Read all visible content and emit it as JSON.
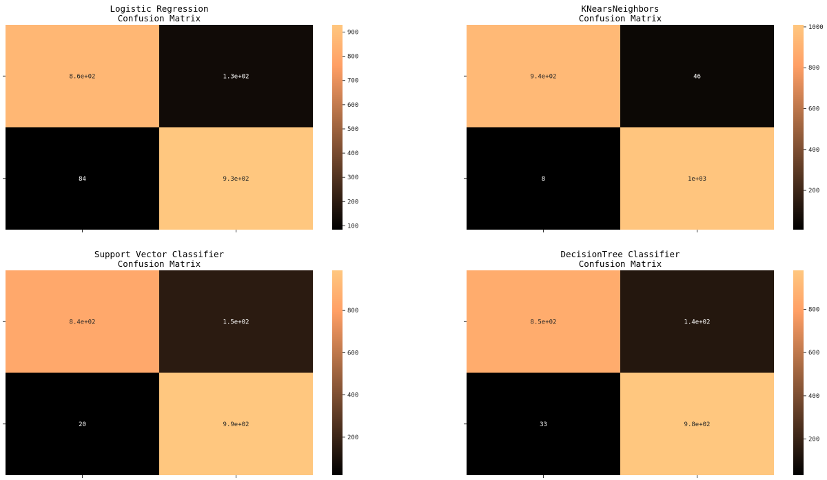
{
  "chart_data": [
    {
      "type": "heatmap",
      "title": "Logistic Regression\nConfusion Matrix",
      "matrix": [
        [
          860,
          130
        ],
        [
          84,
          930
        ]
      ],
      "annotations": [
        [
          "8.6e+02",
          "1.3e+02"
        ],
        [
          "84",
          "9.3e+02"
        ]
      ],
      "colormap": "copper",
      "colorbar": {
        "range": [
          84,
          930
        ],
        "ticks": [
          100,
          200,
          300,
          400,
          500,
          600,
          700,
          800,
          900
        ]
      },
      "xticklabels": [
        "",
        ""
      ],
      "yticklabels": [
        "",
        ""
      ]
    },
    {
      "type": "heatmap",
      "title": "KNearsNeighbors\nConfusion Matrix",
      "matrix": [
        [
          940,
          46
        ],
        [
          8,
          1000
        ]
      ],
      "annotations": [
        [
          "9.4e+02",
          "46"
        ],
        [
          "8",
          "1e+03"
        ]
      ],
      "colormap": "copper",
      "colorbar": {
        "range": [
          8,
          1010
        ],
        "ticks": [
          200,
          400,
          600,
          800,
          1000
        ]
      },
      "xticklabels": [
        "",
        ""
      ],
      "yticklabels": [
        "",
        ""
      ]
    },
    {
      "type": "heatmap",
      "title": "Support Vector Classifier\nConfusion Matrix",
      "matrix": [
        [
          840,
          150
        ],
        [
          20,
          990
        ]
      ],
      "annotations": [
        [
          "8.4e+02",
          "1.5e+02"
        ],
        [
          "20",
          "9.9e+02"
        ]
      ],
      "colormap": "copper",
      "colorbar": {
        "range": [
          20,
          990
        ],
        "ticks": [
          200,
          400,
          600,
          800
        ]
      },
      "xticklabels": [
        "",
        ""
      ],
      "yticklabels": [
        "",
        ""
      ]
    },
    {
      "type": "heatmap",
      "title": "DecisionTree Classifier\nConfusion Matrix",
      "matrix": [
        [
          850,
          140
        ],
        [
          33,
          980
        ]
      ],
      "annotations": [
        [
          "8.5e+02",
          "1.4e+02"
        ],
        [
          "33",
          "9.8e+02"
        ]
      ],
      "colormap": "copper",
      "colorbar": {
        "range": [
          33,
          980
        ],
        "ticks": [
          200,
          400,
          600,
          800
        ]
      },
      "xticklabels": [
        "",
        ""
      ],
      "yticklabels": [
        "",
        ""
      ]
    }
  ]
}
